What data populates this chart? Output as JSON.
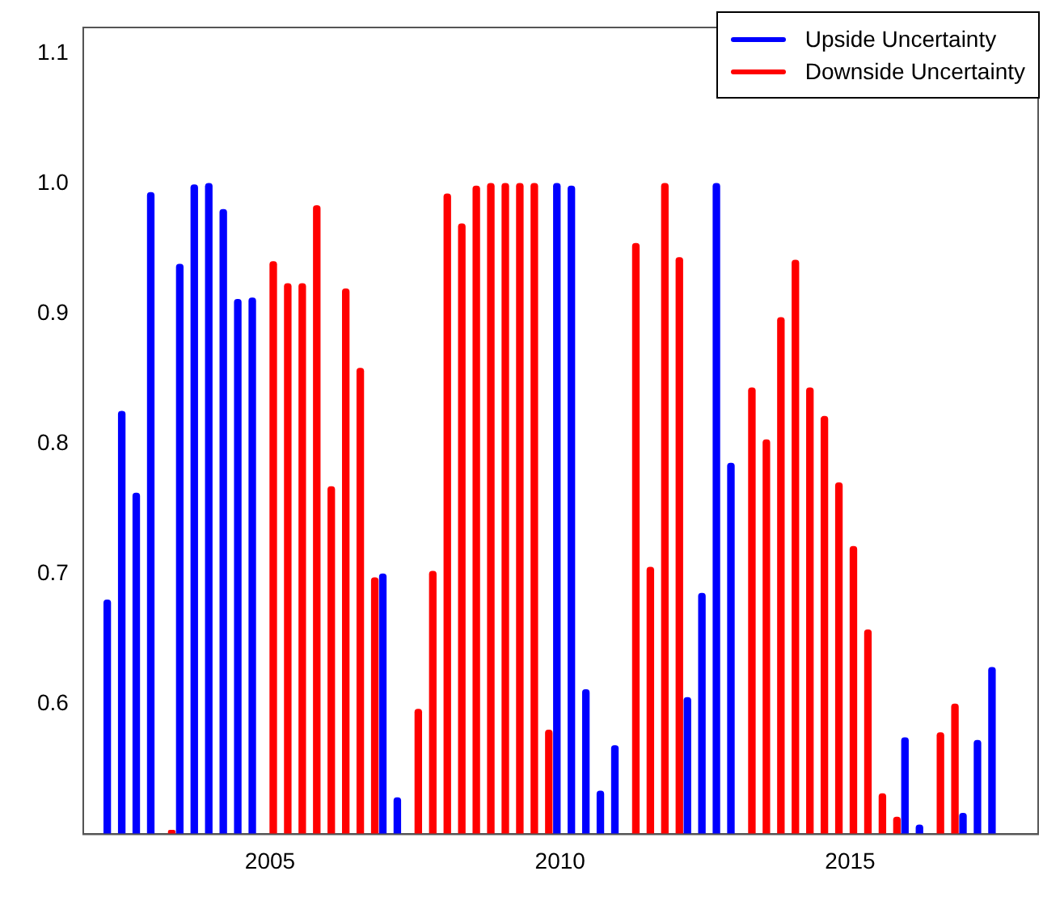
{
  "chart_data": {
    "type": "bar",
    "x": [
      2002.25,
      2002.5,
      2002.75,
      2003,
      2003.25,
      2003.5,
      2003.75,
      2004,
      2004.25,
      2004.5,
      2004.75,
      2005,
      2005.25,
      2005.5,
      2005.75,
      2006,
      2006.25,
      2006.5,
      2006.75,
      2007,
      2007.25,
      2007.5,
      2007.75,
      2008,
      2008.25,
      2008.5,
      2008.75,
      2009,
      2009.25,
      2009.5,
      2009.75,
      2010,
      2010.25,
      2010.5,
      2010.75,
      2011,
      2011.25,
      2011.5,
      2011.75,
      2012,
      2012.25,
      2012.5,
      2012.75,
      2013,
      2013.25,
      2013.5,
      2013.75,
      2014,
      2014.25,
      2014.5,
      2014.75,
      2015,
      2015.25,
      2015.5,
      2015.75,
      2016,
      2016.25,
      2016.5,
      2016.75,
      2017,
      2017.25,
      2017.5
    ],
    "series": [
      {
        "name": "Upside Uncertainty",
        "color": "#0000ff",
        "values": [
          0.68,
          0.825,
          0.762,
          0.993,
          null,
          0.938,
          0.999,
          1.0,
          0.98,
          0.911,
          0.912,
          null,
          null,
          null,
          null,
          null,
          null,
          null,
          null,
          0.7,
          0.528,
          null,
          null,
          null,
          null,
          null,
          null,
          null,
          null,
          null,
          null,
          1.0,
          0.998,
          0.611,
          0.533,
          0.568,
          null,
          null,
          null,
          null,
          0.605,
          0.685,
          1.0,
          0.785,
          null,
          null,
          null,
          null,
          null,
          null,
          null,
          null,
          null,
          null,
          null,
          0.574,
          0.507,
          null,
          null,
          0.516,
          0.572,
          0.628
        ]
      },
      {
        "name": "Downside Uncertainty",
        "color": "#ff0000",
        "values": [
          null,
          null,
          null,
          null,
          0.503,
          null,
          null,
          null,
          null,
          null,
          null,
          0.94,
          0.923,
          0.923,
          0.983,
          0.767,
          0.919,
          0.858,
          0.697,
          null,
          null,
          0.596,
          0.702,
          0.992,
          0.969,
          0.998,
          1.0,
          1.0,
          1.0,
          1.0,
          0.58,
          null,
          null,
          null,
          null,
          null,
          0.954,
          0.705,
          1.0,
          0.943,
          null,
          null,
          null,
          null,
          0.843,
          0.803,
          0.897,
          0.941,
          0.843,
          0.821,
          0.77,
          0.721,
          0.657,
          0.531,
          0.513,
          null,
          null,
          0.578,
          0.6,
          null,
          null,
          null
        ]
      }
    ],
    "xlim": [
      2001.78,
      2018.24
    ],
    "xticks": [
      2005,
      2010,
      2015
    ],
    "ylim": [
      0.5,
      1.12
    ],
    "yticks": [
      0.6,
      0.7,
      0.8,
      0.9,
      {
        "value": 1,
        "label": "1.0"
      },
      1.1
    ],
    "legend": "top right"
  }
}
